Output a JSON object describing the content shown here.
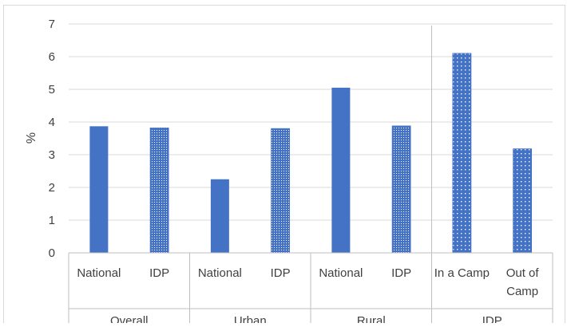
{
  "chart_data": {
    "type": "bar",
    "title": "",
    "ylabel": "%",
    "xlabel": "",
    "ylim": [
      0,
      7
    ],
    "yticks": [
      0,
      1,
      2,
      3,
      4,
      5,
      6,
      7
    ],
    "grid": true,
    "groups": [
      {
        "label": "Overall",
        "categories": [
          "National",
          "IDP"
        ]
      },
      {
        "label": "Urban",
        "categories": [
          "National",
          "IDP"
        ]
      },
      {
        "label": "Rural",
        "categories": [
          "National",
          "IDP"
        ]
      },
      {
        "label": "IDP",
        "categories": [
          "In a Camp",
          "Out of Camp"
        ]
      }
    ],
    "bars": [
      {
        "group": "Overall",
        "category": "National",
        "value": 3.87,
        "pattern": "solid"
      },
      {
        "group": "Overall",
        "category": "IDP",
        "value": 3.82,
        "pattern": "grid"
      },
      {
        "group": "Urban",
        "category": "National",
        "value": 2.25,
        "pattern": "solid"
      },
      {
        "group": "Urban",
        "category": "IDP",
        "value": 3.8,
        "pattern": "grid"
      },
      {
        "group": "Rural",
        "category": "National",
        "value": 5.05,
        "pattern": "solid"
      },
      {
        "group": "Rural",
        "category": "IDP",
        "value": 3.88,
        "pattern": "grid"
      },
      {
        "group": "IDP",
        "category": "In a Camp",
        "value": 6.1,
        "pattern": "dots"
      },
      {
        "group": "IDP",
        "category": "Out of Camp",
        "value": 3.18,
        "pattern": "dots"
      }
    ],
    "colors": {
      "bar": "#4472C4",
      "grid": "#D9D9D9",
      "axis": "#BFBFBF",
      "text": "#404040"
    }
  }
}
